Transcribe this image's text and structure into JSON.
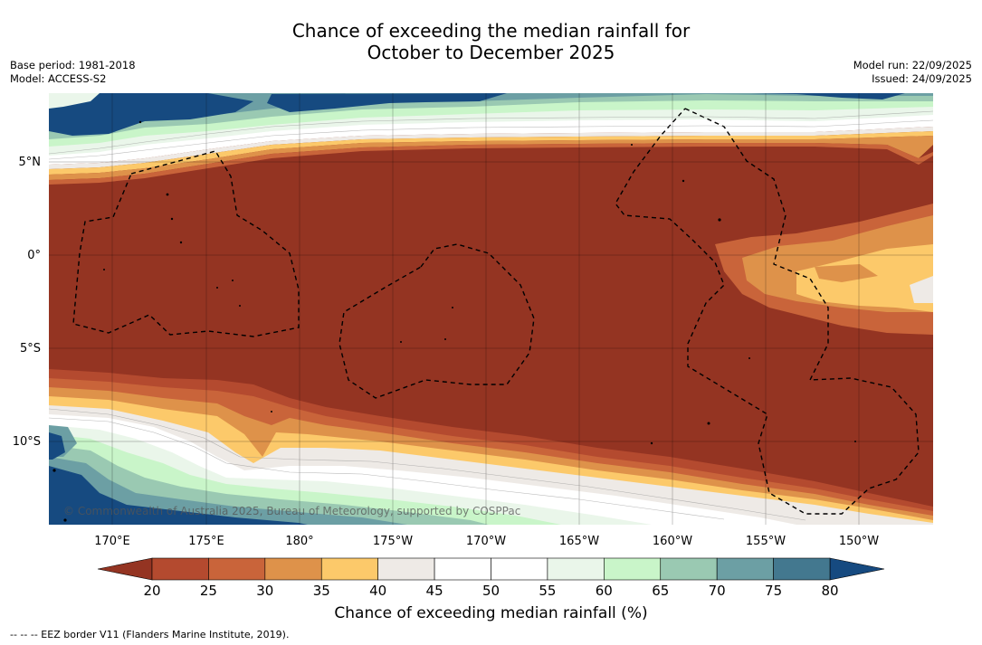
{
  "title": {
    "line1": "Chance of exceeding the median rainfall for",
    "line2": "October to December 2025"
  },
  "meta": {
    "base_period": "Base period: 1981-2018",
    "model": "Model: ACCESS-S2",
    "model_run": "Model run: 22/09/2025",
    "issued": "Issued: 24/09/2025"
  },
  "map": {
    "lat_labels": [
      "5°N",
      "0°",
      "5°S",
      "10°S"
    ],
    "lon_labels": [
      "170°E",
      "175°E",
      "180°",
      "175°W",
      "170°W",
      "165°W",
      "160°W",
      "155°W",
      "150°W"
    ],
    "copyright": "© Commonwealth of Australia 2025, Bureau of Meteorology, supported by COSPPac"
  },
  "colorbar": {
    "ticks": [
      "20",
      "25",
      "30",
      "35",
      "40",
      "45",
      "50",
      "55",
      "60",
      "65",
      "70",
      "75",
      "80"
    ],
    "colors": [
      "#b44a2f",
      "#c9643a",
      "#de924a",
      "#fcc96a",
      "#eeeae6",
      "#ffffff",
      "#ffffff",
      "#eaf6ea",
      "#c9f5c9",
      "#9ac9b2",
      "#6c9fa4",
      "#43788f"
    ],
    "under_color": "#943422",
    "over_color": "#164a80",
    "label": "Chance of exceeding median rainfall (%)"
  },
  "footnote": "--  --  -- EEZ border V11 (Flanders Marine Institute, 2019)."
}
